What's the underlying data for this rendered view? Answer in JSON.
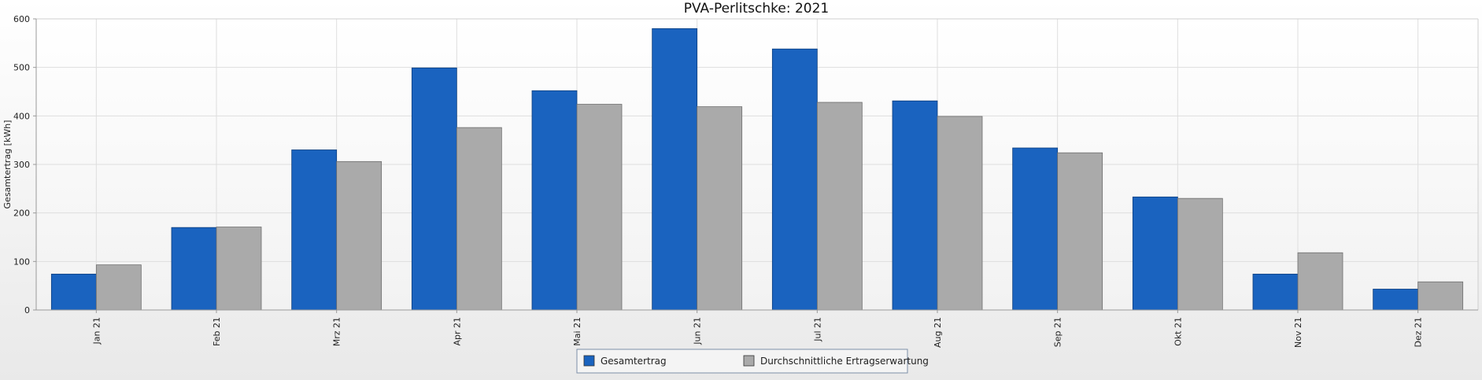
{
  "chart_data": {
    "type": "bar",
    "title": "PVA-Perlitschke: 2021",
    "xlabel": "",
    "ylabel": "Gesamtertrag [kWh]",
    "ylim": [
      0,
      600
    ],
    "yticks": [
      "0",
      "100",
      "200",
      "300",
      "400",
      "500",
      "600"
    ],
    "grid": true,
    "legend_position": "bottom-center",
    "categories": [
      "Jan 21",
      "Feb 21",
      "Mrz 21",
      "Apr 21",
      "Mai 21",
      "Jun 21",
      "Jul 21",
      "Aug 21",
      "Sep 21",
      "Okt 21",
      "Nov 21",
      "Dez 21"
    ],
    "series": [
      {
        "name": "Gesamtertrag",
        "color": "#1a63bf",
        "values": [
          74,
          170,
          330,
          499,
          452,
          580,
          538,
          431,
          334,
          233,
          74,
          43
        ]
      },
      {
        "name": "Durchschnittliche Ertragserwartung",
        "color": "#aaaaaa",
        "values": [
          93,
          171,
          306,
          376,
          424,
          419,
          428,
          399,
          324,
          230,
          118,
          58
        ]
      }
    ]
  }
}
